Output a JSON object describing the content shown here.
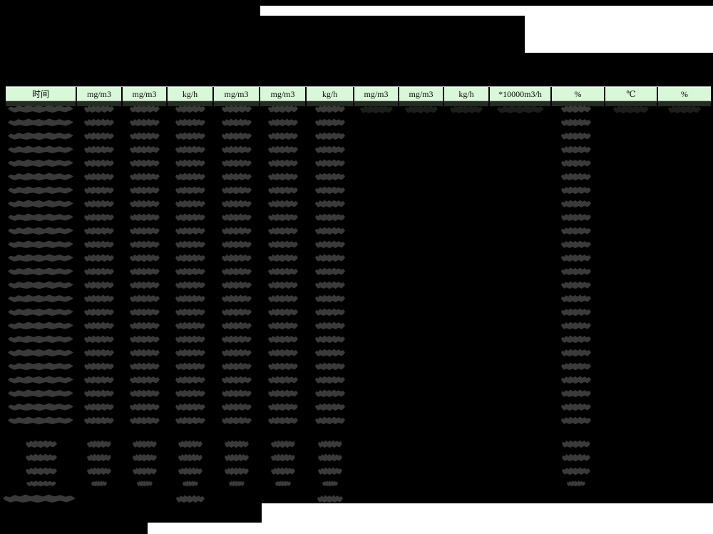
{
  "page": {
    "description": "Emissions monitoring data report (CEMS hourly report) with all values redacted/blacked out",
    "background_color": "#000000"
  },
  "colors": {
    "header_bg": "#d9f7d9",
    "header_text": "#0a0a0a",
    "under_header_strip": "#242c24",
    "blob": "#3a3a3a",
    "blob_dark": "#1d1d1d",
    "white": "#ffffff"
  },
  "table": {
    "headers": [
      {
        "label": "时间"
      },
      {
        "label": "mg/m3"
      },
      {
        "label": "mg/m3"
      },
      {
        "label": "kg/h"
      },
      {
        "label": "mg/m3"
      },
      {
        "label": "mg/m3"
      },
      {
        "label": "kg/h"
      },
      {
        "label": "mg/m3"
      },
      {
        "label": "mg/m3"
      },
      {
        "label": "kg/h"
      },
      {
        "label": "*10000m3/h"
      },
      {
        "label": "%"
      },
      {
        "label": "℃"
      },
      {
        "label": "%"
      }
    ]
  },
  "redaction": {
    "data_rows": 24,
    "data_row_columns": [
      1,
      2,
      3,
      4,
      5,
      6,
      7,
      12
    ],
    "first_row_extra_columns": [
      8,
      9,
      10,
      11,
      13,
      14
    ],
    "first_row_extra_dark": true,
    "summary_rows": 3,
    "summary_row_columns": [
      1,
      2,
      3,
      4,
      5,
      6,
      7,
      12
    ],
    "small_summary_rows": 1,
    "small_summary_row_columns": [
      1,
      2,
      3,
      4,
      5,
      6,
      7,
      12
    ],
    "footer_row_columns": [
      1,
      4,
      7
    ]
  }
}
